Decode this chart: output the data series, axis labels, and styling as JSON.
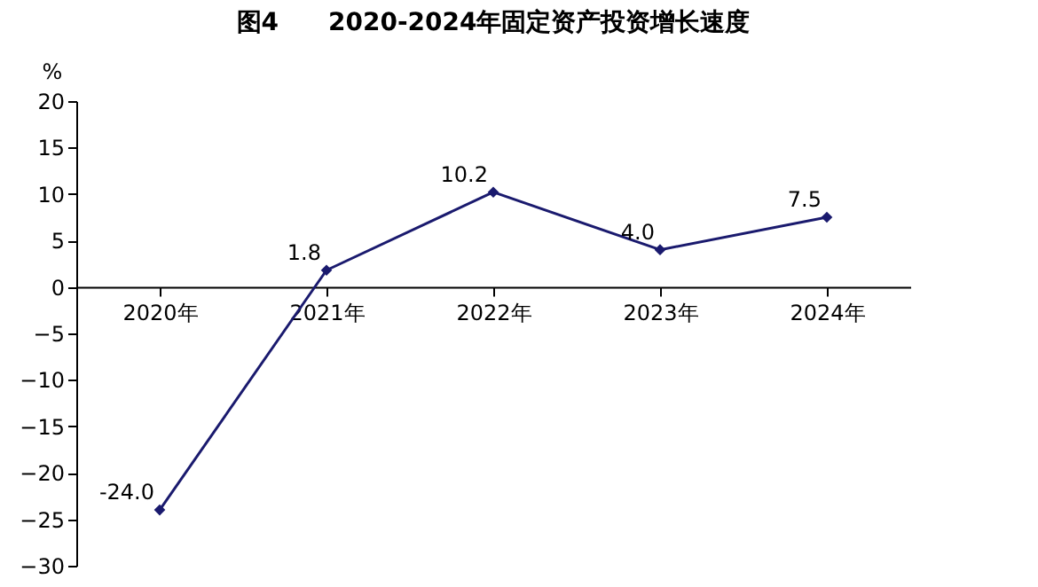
{
  "chart_data": {
    "type": "line",
    "title": "图4　　2020-2024年固定资产投资增长速度",
    "ylabel": "%",
    "categories": [
      "2020年",
      "2021年",
      "2022年",
      "2023年",
      "2024年"
    ],
    "series": [
      {
        "color": "#1a1a6e",
        "values": [
          -24.0,
          1.8,
          10.2,
          4.0,
          7.5
        ],
        "value_labels": [
          "-24.0",
          "1.8",
          "10.2",
          "4.0",
          "7.5"
        ]
      }
    ],
    "ylim": [
      -30,
      20
    ],
    "yticks": [
      -30,
      -25,
      -20,
      -15,
      -10,
      -5,
      0,
      5,
      10,
      15,
      20
    ],
    "grid": false,
    "marker": "diamond",
    "line_style": "solid"
  }
}
